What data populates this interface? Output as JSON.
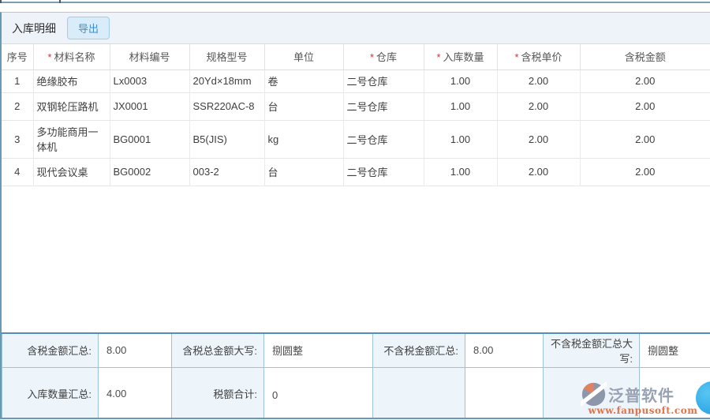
{
  "panel": {
    "title": "入库明细",
    "export_button": "导出"
  },
  "table": {
    "columns": [
      {
        "key": "index",
        "label": "序号",
        "required": false
      },
      {
        "key": "material-name",
        "label": "材料名称",
        "required": true
      },
      {
        "key": "material-code",
        "label": "材料编号",
        "required": false
      },
      {
        "key": "spec-model",
        "label": "规格型号",
        "required": false
      },
      {
        "key": "unit",
        "label": "单位",
        "required": false
      },
      {
        "key": "warehouse",
        "label": "仓库",
        "required": true
      },
      {
        "key": "inbound-qty",
        "label": "入库数量",
        "required": true
      },
      {
        "key": "tax-unit-price",
        "label": "含税单价",
        "required": true
      },
      {
        "key": "tax-amount",
        "label": "含税金额",
        "required": false
      }
    ],
    "rows": [
      [
        "1",
        "绝缘胶布",
        "Lx0003",
        "20Yd×18mm",
        "卷",
        "二号仓库",
        "1.00",
        "2.00",
        "2.00"
      ],
      [
        "2",
        "双钢轮压路机",
        "JX0001",
        "SSR220AC-8",
        "台",
        "二号仓库",
        "1.00",
        "2.00",
        "2.00"
      ],
      [
        "3",
        "多功能商用一体机",
        "BG0001",
        "B5(JIS)",
        "kg",
        "二号仓库",
        "1.00",
        "2.00",
        "2.00"
      ],
      [
        "4",
        "现代会议桌",
        "BG0002",
        "003-2",
        "台",
        "二号仓库",
        "1.00",
        "2.00",
        "2.00"
      ]
    ]
  },
  "summary": {
    "rows": [
      [
        {
          "label": "含税金额汇总:",
          "value": "8.00"
        },
        {
          "label": "含税总金额大写:",
          "value": "捌圆整"
        },
        {
          "label": "不含税金额汇总:",
          "value": "8.00"
        },
        {
          "label": "不含税金额汇总大写:",
          "value": "捌圆整"
        }
      ],
      [
        {
          "label": "入库数量汇总:",
          "value": "4.00"
        },
        {
          "label": "税额合计:",
          "value": "0"
        },
        {
          "label": "",
          "value": ""
        },
        {
          "label": "",
          "value": ""
        }
      ]
    ]
  },
  "watermark": {
    "brand": "泛普软件",
    "url": "www.fanpusoft.com"
  },
  "colors": {
    "accent_blue": "#3e8ec9",
    "required_red": "#e02b2b",
    "panel_header_bg": "#eef3f9",
    "panel_border_teal": "#679bb4",
    "summary_top_border": "#4e8fc0",
    "summary_cell_border": "#9cc4d6",
    "summary_label_bg": "#edf5fa",
    "brand_gray": "#99a2b4",
    "brand_orange": "#e0734a",
    "float_button_blue": "#2cb0e8"
  }
}
